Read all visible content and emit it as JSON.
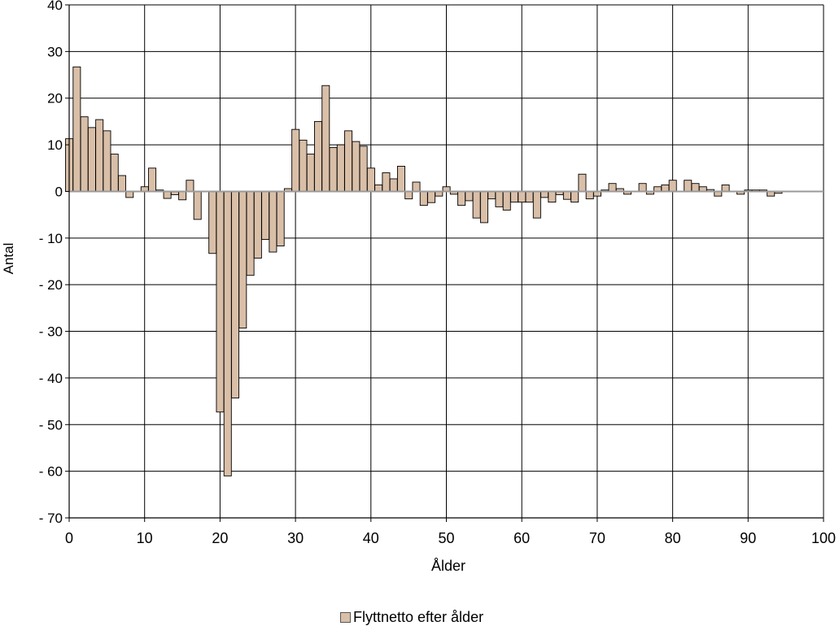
{
  "chart_data": {
    "type": "bar",
    "xlabel": "Ålder",
    "ylabel": "Antal",
    "xlim": [
      0,
      100
    ],
    "ylim": [
      -70,
      40
    ],
    "x_ticks": [
      "0",
      "10",
      "20",
      "30",
      "40",
      "50",
      "60",
      "70",
      "80",
      "90",
      "100"
    ],
    "y_ticks": [
      "40",
      "30",
      "20",
      "10",
      "0",
      "- 10",
      "- 20",
      "- 30",
      "- 40",
      "- 50",
      "- 60",
      "- 70"
    ],
    "grid": true,
    "legend_position": "bottom",
    "bar_color": "#d9bfa8",
    "series": [
      {
        "name": "Flyttnetto efter ålder",
        "x": [
          0,
          1,
          2,
          3,
          4,
          5,
          6,
          7,
          8,
          9,
          10,
          11,
          12,
          13,
          14,
          15,
          16,
          17,
          18,
          19,
          20,
          21,
          22,
          23,
          24,
          25,
          26,
          27,
          28,
          29,
          30,
          31,
          32,
          33,
          34,
          35,
          36,
          37,
          38,
          39,
          40,
          41,
          42,
          43,
          44,
          45,
          46,
          47,
          48,
          49,
          50,
          51,
          52,
          53,
          54,
          55,
          56,
          57,
          58,
          59,
          60,
          61,
          62,
          63,
          64,
          65,
          66,
          67,
          68,
          69,
          70,
          71,
          72,
          73,
          74,
          75,
          76,
          77,
          78,
          79,
          80,
          81,
          82,
          83,
          84,
          85,
          86,
          87,
          88,
          89,
          90,
          91,
          92,
          93,
          94
        ],
        "values": [
          11.3,
          26.7,
          16,
          13.7,
          15.4,
          13,
          8,
          3.4,
          -1.3,
          0,
          1,
          5,
          0.3,
          -1.5,
          -0.7,
          -1.8,
          2.4,
          -6,
          0,
          -13.3,
          -47.3,
          -61,
          -44.3,
          -29.3,
          -18,
          -14.3,
          -10.3,
          -13,
          -11.7,
          0.6,
          13.3,
          11,
          8,
          15,
          22.7,
          9.4,
          10,
          13,
          10.7,
          9.7,
          5,
          1.4,
          4,
          2.7,
          5.4,
          -1.6,
          2,
          -3,
          -2.4,
          -1,
          1,
          -0.6,
          -3,
          -2,
          -5.7,
          -6.7,
          -1.6,
          -3.3,
          -4,
          -2.3,
          -2.3,
          -2.3,
          -5.7,
          -1.3,
          -2.3,
          -0.7,
          -1.7,
          -2.3,
          3.7,
          -1.6,
          -1,
          0.3,
          1.7,
          0.6,
          -0.6,
          0,
          1.7,
          -0.6,
          1,
          1.4,
          2.4,
          0,
          2.4,
          1.7,
          1,
          0.4,
          -1,
          1.4,
          0,
          -0.6,
          0.3,
          0.3,
          0.3,
          -1,
          -0.4
        ]
      }
    ]
  }
}
